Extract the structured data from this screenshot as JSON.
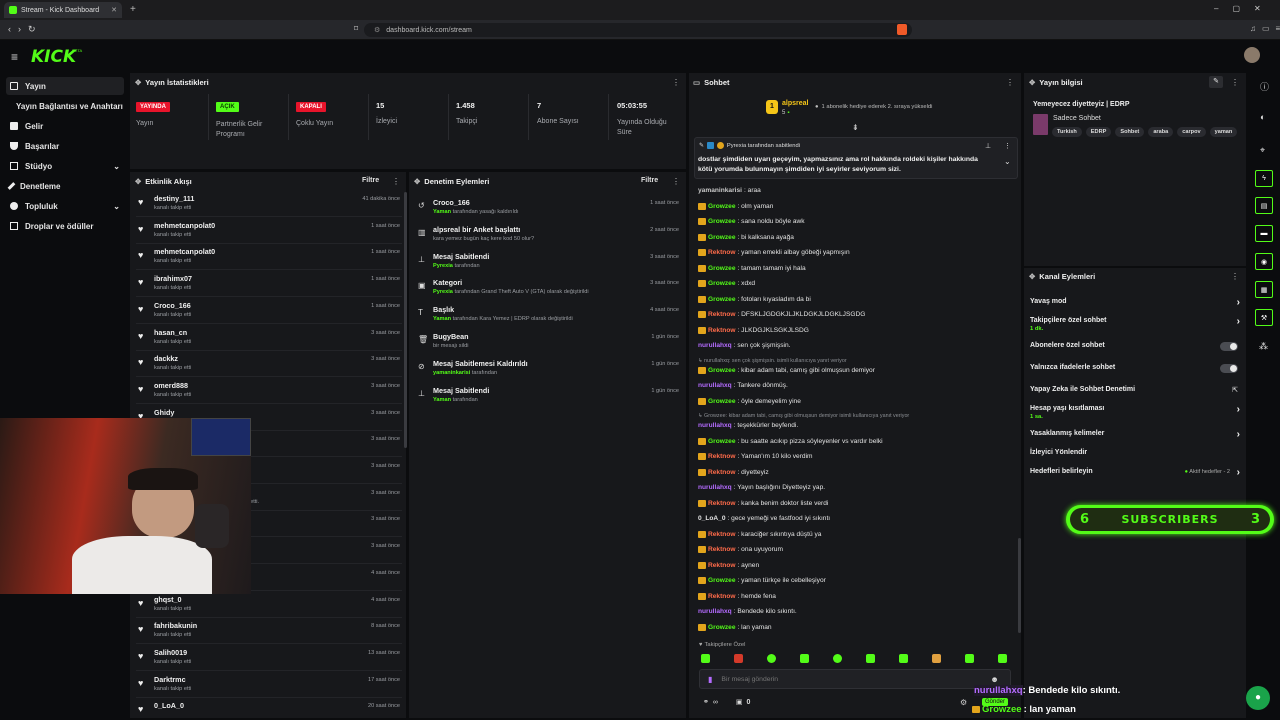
{
  "browser": {
    "tab_title": "Stream - Kick Dashboard",
    "url": "dashboard.kick.com/stream"
  },
  "brand": {
    "logo": "KICK",
    "beta": "BETA",
    "accent": "#53fc18"
  },
  "sidebar": {
    "items": [
      {
        "label": "Yayın",
        "icon": "video-icon"
      },
      {
        "label": "Yayın Bağlantısı ve Anahtarı"
      },
      {
        "label": "Gelir",
        "icon": "money-icon"
      },
      {
        "label": "Başarılar",
        "icon": "trophy-icon"
      },
      {
        "label": "Stüdyo",
        "icon": "studio-icon"
      },
      {
        "label": "Denetleme",
        "icon": "wrench-icon"
      },
      {
        "label": "Topluluk",
        "icon": "community-icon"
      },
      {
        "label": "Droplar ve ödüller",
        "icon": "gift-icon"
      }
    ]
  },
  "stats": {
    "title": "Yayın İstatistikleri",
    "items": [
      {
        "badge": "YAYINDA",
        "label": "Yayın"
      },
      {
        "badge": "AÇIK",
        "label": "Partnerlik Gelir Programı"
      },
      {
        "badge": "KAPALI",
        "label": "Çoklu Yayın"
      },
      {
        "value": "15",
        "label": "İzleyici"
      },
      {
        "value": "1.458",
        "label": "Takipçi"
      },
      {
        "value": "7",
        "label": "Abone Sayısı"
      },
      {
        "value": "05:03:55",
        "label": "Yayında Olduğu Süre"
      }
    ]
  },
  "activity": {
    "title": "Etkinlik Akışı",
    "filter": "Filtre",
    "events": [
      {
        "name": "destiny_111",
        "sub": "kanalı takip etti",
        "time": "41 dakika önce"
      },
      {
        "name": "mehmetcanpolat0",
        "sub": "kanalı takip etti",
        "time": "1 saat önce"
      },
      {
        "name": "mehmetcanpolat0",
        "sub": "kanalı takip etti",
        "time": "1 saat önce"
      },
      {
        "name": "ibrahimx07",
        "sub": "kanalı takip etti",
        "time": "1 saat önce"
      },
      {
        "name": "Croco_166",
        "sub": "kanalı takip etti",
        "time": "1 saat önce"
      },
      {
        "name": "hasan_cn",
        "sub": "kanalı takip etti",
        "time": "3 saat önce"
      },
      {
        "name": "dackkz",
        "sub": "kanalı takip etti",
        "time": "3 saat önce"
      },
      {
        "name": "omerd888",
        "sub": "kanalı takip etti",
        "time": "3 saat önce"
      },
      {
        "name": "Ghidy",
        "sub": "",
        "time": "3 saat önce"
      },
      {
        "name": "",
        "sub": "lik hediye etti.",
        "time": "3 saat önce"
      },
      {
        "name": "",
        "sub": "",
        "time": "3 saat önce"
      },
      {
        "name": "",
        "sub": "ncan isimli kullanıcıya abonelik hediye etti.",
        "time": "3 saat önce"
      },
      {
        "name": "",
        "sub": "",
        "time": "3 saat önce"
      },
      {
        "name": "",
        "sub": "",
        "time": "3 saat önce"
      },
      {
        "name": "",
        "sub": "",
        "time": "4 saat önce"
      },
      {
        "name": "ghqst_0",
        "sub": "kanalı takip etti",
        "time": "4 saat önce"
      },
      {
        "name": "fahribakunin",
        "sub": "kanalı takip etti",
        "time": "8 saat önce"
      },
      {
        "name": "Salih0019",
        "sub": "kanalı takip etti",
        "time": "13 saat önce"
      },
      {
        "name": "Darktrmc",
        "sub": "kanalı takip etti",
        "time": "17 saat önce"
      },
      {
        "name": "0_LoA_0",
        "sub": "",
        "time": "20 saat önce"
      }
    ]
  },
  "moderation": {
    "title": "Denetim Eylemleri",
    "filter": "Filtre",
    "events": [
      {
        "title": "Croco_166",
        "sub_user": "Yaman",
        "sub": " tarafından yasağı kaldırıldı",
        "time": "1 saat önce",
        "icon": "undo-icon"
      },
      {
        "title": "alpsreal bir Anket başlattı",
        "sub_user": "",
        "sub": "kara yemez bugün kaç kere kod 50 olur?",
        "time": "2 saat önce",
        "icon": "poll-icon"
      },
      {
        "title": "Mesaj Sabitlendi",
        "sub_user": "Pyrexia",
        "sub": " tarafından",
        "time": "3 saat önce",
        "icon": "pin-icon"
      },
      {
        "title": "Kategori",
        "sub_user": "Pyrexia",
        "sub": " tarafından Grand Theft Auto V (GTA) olarak değiştirildi",
        "time": "3 saat önce",
        "icon": "category-icon"
      },
      {
        "title": "Başlık",
        "sub_user": "Yaman",
        "sub": " tarafından Kara Yemez | EDRP olarak değiştirildi",
        "time": "4 saat önce",
        "icon": "title-icon"
      },
      {
        "title": "BugyBean",
        "sub_user": "",
        "sub": "bir mesajı sildi",
        "time": "1 gün önce",
        "icon": "trash-icon"
      },
      {
        "title": "Mesaj Sabitlemesi Kaldırıldı",
        "sub_user": "yamaninkarisi",
        "sub": " tarafından",
        "time": "1 gün önce",
        "icon": "unpin-icon"
      },
      {
        "title": "Mesaj Sabitlendi",
        "sub_user": "Yaman",
        "sub": " tarafından",
        "time": "1 gün önce",
        "icon": "pin-icon"
      }
    ]
  },
  "chat": {
    "title": "Sohbet",
    "top_user": "alpsreal",
    "top_count": "5",
    "gift_note": "1 abonelik hediye ederek 2. sıraya yükseldi",
    "pinned_by": "Pyrexia tarafından sabitlendi",
    "pinned_text": "dostlar şimdiden uyarı geçeyim, yapmazsınız ama rol hakkında roldeki kişiler hakkında kötü yorumda bulunmayın şimdiden iyi seyirler seviyorum sizi.",
    "messages": [
      {
        "user": "yamaninkarisi",
        "text": ": araa",
        "cls": "u-yam",
        "badge": false
      },
      {
        "user": "Growzee",
        "text": ": olm yaman",
        "cls": "u-grow",
        "badge": true
      },
      {
        "user": "Growzee",
        "text": ": sana noldu böyle awk",
        "cls": "u-grow",
        "badge": true
      },
      {
        "user": "Growzee",
        "text": ": bi kalksana ayağa",
        "cls": "u-grow",
        "badge": true
      },
      {
        "user": "Rektnow",
        "text": ": yaman emekli albay göbeği yapmışın",
        "cls": "u-rek",
        "badge": true
      },
      {
        "user": "Growzee",
        "text": ": tamam tamam iyi hala",
        "cls": "u-grow",
        "badge": true
      },
      {
        "user": "Growzee",
        "text": ": xdxd",
        "cls": "u-grow",
        "badge": true
      },
      {
        "user": "Growzee",
        "text": ": fotoları kıyasladım da bi",
        "cls": "u-grow",
        "badge": true
      },
      {
        "user": "Rektnow",
        "text": ": DFSKLJGDGKJLJKLDGKJLDGKLJSGDG",
        "cls": "u-rek",
        "badge": true
      },
      {
        "user": "Rektnow",
        "text": ": JLKDGJKLSGKJLSDG",
        "cls": "u-rek",
        "badge": true
      },
      {
        "user": "nurullahxq",
        "text": ": sen çok şişmişsin.",
        "cls": "u-nur",
        "badge": false
      },
      {
        "reply": "↳ nurullahxq: sen çok şişmişsin. isimli kullanıcıya yanıt veriyor"
      },
      {
        "user": "Growzee",
        "text": ": kibar adam tabi, camış gibi olmuşsun demiyor",
        "cls": "u-grow",
        "badge": true
      },
      {
        "user": "nurullahxq",
        "text": ": Tankere dönmüş.",
        "cls": "u-nur",
        "badge": false
      },
      {
        "user": "Growzee",
        "text": ": öyle demeyelim yine",
        "cls": "u-grow",
        "badge": true
      },
      {
        "reply": "↳ Growzee: kibar adam tabi, camış gibi olmuşsun demiyor isimli kullanıcıya yanıt veriyor"
      },
      {
        "user": "nurullahxq",
        "text": ": teşekkürler beyfendi.",
        "cls": "u-nur",
        "badge": false
      },
      {
        "user": "Growzee",
        "text": ": bu saatte acıkıp pizza söyleyenler vs vardır belki",
        "cls": "u-grow",
        "badge": true
      },
      {
        "user": "Rektnow",
        "text": ": Yaman'ım 10 kilo verdim",
        "cls": "u-rek",
        "badge": true
      },
      {
        "user": "Rektnow",
        "text": ": diyetteyiz",
        "cls": "u-rek",
        "badge": true
      },
      {
        "user": "nurullahxq",
        "text": ": Yayın başlığını Diyetteyiz yap.",
        "cls": "u-nur",
        "badge": false
      },
      {
        "user": "Rektnow",
        "text": ": kanka benim doktor liste verdi",
        "cls": "u-rek",
        "badge": true
      },
      {
        "user": "0_LoA_0",
        "text": ": gece yemeği ve fastfood iyi sıkıntı",
        "cls": "u-wht",
        "badge": false
      },
      {
        "user": "Rektnow",
        "text": ": karaciğer sıkıntıya düştü ya",
        "cls": "u-rek",
        "badge": true
      },
      {
        "user": "Rektnow",
        "text": ": ona uyuyorum",
        "cls": "u-rek",
        "badge": true
      },
      {
        "user": "Rektnow",
        "text": ": aynen",
        "cls": "u-rek",
        "badge": true
      },
      {
        "user": "Growzee",
        "text": ": yaman türkçe ile cebelleşiyor",
        "cls": "u-grow",
        "badge": true
      },
      {
        "user": "Rektnow",
        "text": ": hemde fena",
        "cls": "u-rek",
        "badge": true
      },
      {
        "user": "nurullahxq",
        "text": ": Bendede kilo sıkıntı.",
        "cls": "u-nur",
        "badge": false
      },
      {
        "user": "Growzee",
        "text": ": lan yaman",
        "cls": "u-grow",
        "badge": true
      }
    ],
    "emote_section": "Takipçilere Özel",
    "input_placeholder": "Bir mesaj gönderin",
    "footer_count": "0"
  },
  "stream_info": {
    "title": "Yayın bilgisi",
    "stream_title": "Yemeyecez diyetteyiz | EDRP",
    "category": "Sadece Sohbet",
    "tags": [
      "Turkish",
      "EDRP",
      "Sohbet",
      "araba",
      "carpov",
      "yaman"
    ]
  },
  "channel_actions": {
    "title": "Kanal Eylemleri",
    "items": [
      {
        "label": "Yavaş mod",
        "sub": "",
        "control": "chevron"
      },
      {
        "label": "Takipçilere özel sohbet",
        "sub": "1 dk.",
        "control": "chevron"
      },
      {
        "label": "Abonelere özel sohbet",
        "sub": "",
        "control": "toggle"
      },
      {
        "label": "Yalnızca ifadelerle sohbet",
        "sub": "",
        "control": "toggle"
      },
      {
        "label": "Yapay Zeka ile Sohbet Denetimi",
        "sub": "",
        "control": "external"
      },
      {
        "label": "Hesap yaşı kısıtlaması",
        "sub": "1 sa.",
        "control": "chevron"
      },
      {
        "label": "Yasaklanmış kelimeler",
        "sub": "",
        "control": "chevron"
      },
      {
        "label": "İzleyici Yönlendir",
        "sub": "",
        "control": "none"
      },
      {
        "label": "Hedefleri belirleyin",
        "sub": "",
        "control": "chevron",
        "note": "Aktif hedefler - 2"
      }
    ]
  },
  "overlay": {
    "sub_left": "6",
    "sub_label": "SUBSCRIBERS",
    "sub_right": "3",
    "bottom_lines": [
      {
        "user": "nurullahxq",
        "text": ": Bendede kilo sıkıntı."
      },
      {
        "user": "Growzee",
        "text": ": lan yaman"
      }
    ],
    "send_label": "Gönder"
  }
}
